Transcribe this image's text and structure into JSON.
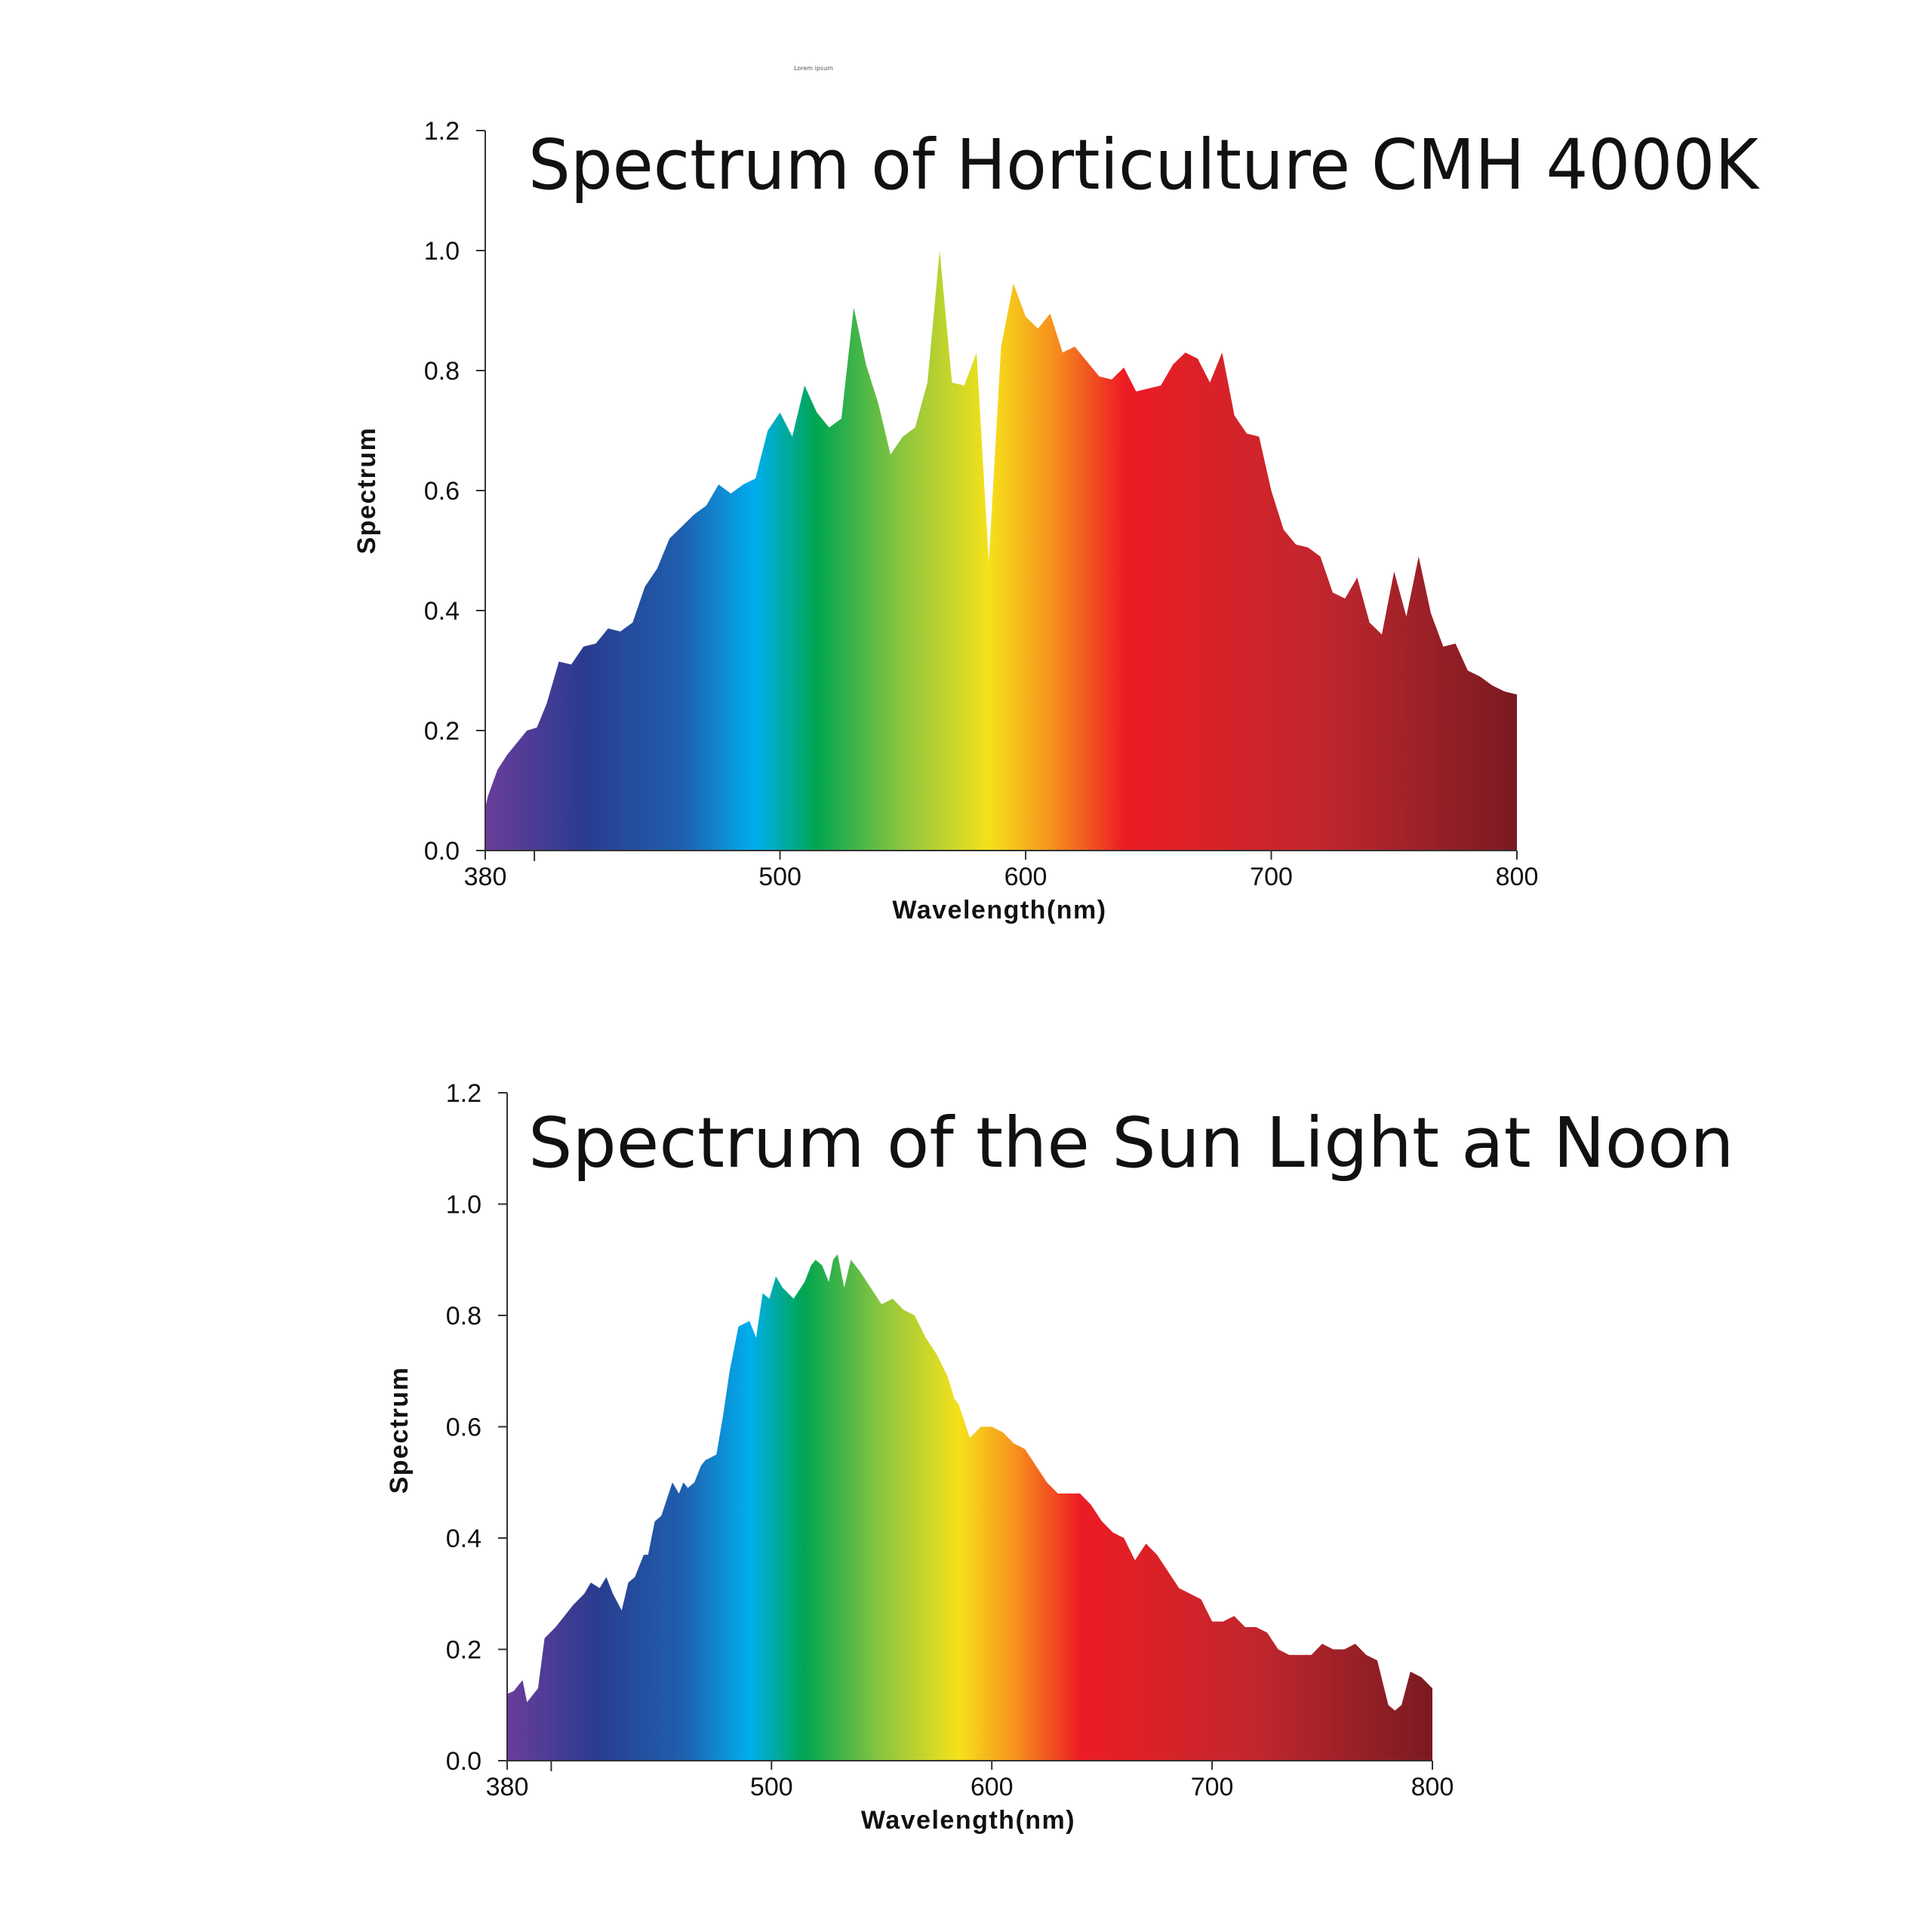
{
  "top_note": "Lorem ipsum",
  "spectrum_colors": [
    "#6a3d9a",
    "#2a3b8f",
    "#1f5fae",
    "#00aeef",
    "#00a651",
    "#8dc63f",
    "#f5e11a",
    "#f7941d",
    "#ed1c24",
    "#c1272d",
    "#7a1a22"
  ],
  "chart_data": [
    {
      "type": "area",
      "title": "Spectrum of Horticulture CMH 4000K",
      "xlabel": "Wavelength(nm)",
      "ylabel": "Spectrum",
      "xlim": [
        380,
        800
      ],
      "ylim": [
        0.0,
        1.2
      ],
      "xticks": [
        380,
        500,
        600,
        700,
        800
      ],
      "xtick_labels": [
        "380",
        "500",
        "600",
        "700",
        "800"
      ],
      "yticks": [
        0.0,
        0.2,
        0.4,
        0.6,
        0.8,
        1.0,
        1.2
      ],
      "ytick_labels": [
        "0.0",
        "0.2",
        "0.4",
        "0.6",
        "0.8",
        "1.0",
        "1.2"
      ],
      "minor_xticks": [
        400
      ],
      "legend": "none",
      "grid": false,
      "x": [
        380,
        381,
        385,
        389,
        393,
        397,
        401,
        405,
        410,
        415,
        420,
        425,
        430,
        435,
        440,
        445,
        450,
        455,
        460,
        465,
        470,
        475,
        480,
        485,
        490,
        495,
        500,
        505,
        510,
        515,
        520,
        525,
        530,
        535,
        540,
        545,
        550,
        555,
        560,
        565,
        570,
        575,
        580,
        585,
        590,
        595,
        600,
        605,
        610,
        615,
        620,
        625,
        630,
        635,
        640,
        645,
        650,
        655,
        660,
        665,
        670,
        675,
        680,
        685,
        690,
        695,
        700,
        705,
        710,
        715,
        720,
        725,
        730,
        735,
        740,
        745,
        750,
        755,
        760,
        765,
        770,
        775,
        780,
        785,
        790,
        795,
        800
      ],
      "y": [
        0.07,
        0.09,
        0.135,
        0.16,
        0.18,
        0.2,
        0.205,
        0.245,
        0.315,
        0.31,
        0.34,
        0.345,
        0.37,
        0.365,
        0.38,
        0.44,
        0.47,
        0.52,
        0.54,
        0.56,
        0.575,
        0.61,
        0.595,
        0.61,
        0.62,
        0.7,
        0.73,
        0.69,
        0.775,
        0.73,
        0.705,
        0.72,
        0.905,
        0.81,
        0.745,
        0.66,
        0.69,
        0.705,
        0.78,
        1.0,
        0.78,
        0.775,
        0.83,
        0.48,
        0.84,
        0.945,
        0.89,
        0.87,
        0.895,
        0.83,
        0.84,
        0.815,
        0.79,
        0.785,
        0.805,
        0.765,
        0.77,
        0.775,
        0.81,
        0.83,
        0.82,
        0.78,
        0.83,
        0.725,
        0.695,
        0.69,
        0.6,
        0.535,
        0.51,
        0.505,
        0.49,
        0.43,
        0.42,
        0.455,
        0.38,
        0.36,
        0.465,
        0.39,
        0.49,
        0.395,
        0.34,
        0.345,
        0.3,
        0.29,
        0.275,
        0.265,
        0.26
      ]
    },
    {
      "type": "area",
      "title": "Spectrum of the Sun Light at Noon",
      "xlabel": "Wavelength(nm)",
      "ylabel": "Spectrum",
      "xlim": [
        380,
        800
      ],
      "ylim": [
        0.0,
        1.2
      ],
      "xticks": [
        380,
        500,
        600,
        700,
        800
      ],
      "xtick_labels": [
        "380",
        "500",
        "600",
        "700",
        "800"
      ],
      "yticks": [
        0.0,
        0.2,
        0.4,
        0.6,
        0.8,
        1.0,
        1.2
      ],
      "ytick_labels": [
        "0.0",
        "0.2",
        "0.4",
        "0.6",
        "0.8",
        "1.0",
        "1.2"
      ],
      "minor_xticks": [
        400
      ],
      "legend": "none",
      "grid": false,
      "x": [
        380,
        383,
        387,
        389,
        392,
        394,
        397,
        402,
        406,
        410,
        415,
        418,
        422,
        425,
        428,
        432,
        435,
        438,
        440,
        442,
        444,
        447,
        450,
        455,
        458,
        460,
        462,
        465,
        468,
        470,
        475,
        478,
        481,
        485,
        490,
        493,
        496,
        499,
        502,
        505,
        510,
        515,
        518,
        520,
        523,
        526,
        528,
        530,
        533,
        536,
        540,
        545,
        550,
        555,
        560,
        565,
        570,
        575,
        580,
        583,
        585,
        590,
        595,
        600,
        605,
        610,
        615,
        620,
        625,
        630,
        635,
        640,
        645,
        650,
        655,
        660,
        665,
        670,
        675,
        680,
        685,
        690,
        695,
        700,
        705,
        710,
        715,
        720,
        725,
        730,
        735,
        740,
        745,
        750,
        755,
        760,
        765,
        770,
        775,
        780,
        783,
        786,
        790,
        795,
        800
      ],
      "y": [
        0.12,
        0.125,
        0.145,
        0.105,
        0.12,
        0.13,
        0.22,
        0.24,
        0.26,
        0.28,
        0.3,
        0.32,
        0.31,
        0.33,
        0.3,
        0.27,
        0.32,
        0.33,
        0.35,
        0.37,
        0.37,
        0.43,
        0.44,
        0.5,
        0.48,
        0.5,
        0.49,
        0.5,
        0.53,
        0.54,
        0.55,
        0.62,
        0.7,
        0.78,
        0.79,
        0.76,
        0.84,
        0.83,
        0.87,
        0.85,
        0.83,
        0.86,
        0.89,
        0.9,
        0.89,
        0.86,
        0.9,
        0.91,
        0.85,
        0.9,
        0.88,
        0.85,
        0.82,
        0.83,
        0.81,
        0.8,
        0.76,
        0.73,
        0.69,
        0.65,
        0.64,
        0.58,
        0.6,
        0.6,
        0.59,
        0.57,
        0.56,
        0.53,
        0.5,
        0.48,
        0.48,
        0.48,
        0.46,
        0.43,
        0.41,
        0.4,
        0.36,
        0.39,
        0.37,
        0.34,
        0.31,
        0.3,
        0.29,
        0.25,
        0.25,
        0.26,
        0.24,
        0.24,
        0.23,
        0.2,
        0.19,
        0.19,
        0.19,
        0.21,
        0.2,
        0.2,
        0.21,
        0.19,
        0.18,
        0.1,
        0.09,
        0.1,
        0.16,
        0.15,
        0.13
      ]
    }
  ]
}
